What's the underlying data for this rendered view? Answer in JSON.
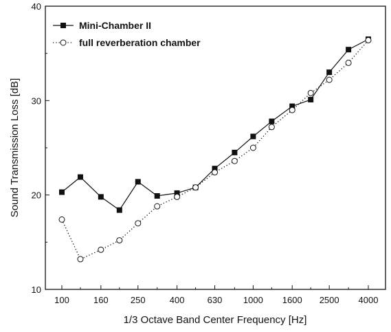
{
  "chart_data": {
    "type": "line",
    "title": "",
    "xlabel": "1/3 Octave Band Center Frequency [Hz]",
    "ylabel": "Sound Transmission Loss [dB]",
    "ylim": [
      10,
      40
    ],
    "yticks": [
      10,
      20,
      30,
      40
    ],
    "x_scale": "log",
    "x": [
      100,
      125,
      160,
      200,
      250,
      315,
      400,
      500,
      630,
      800,
      1000,
      1250,
      1600,
      2000,
      2500,
      3150,
      4000
    ],
    "xtick_labels": [
      "100",
      "160",
      "250",
      "400",
      "630",
      "1000",
      "1600",
      "2500",
      "4000"
    ],
    "legend_position": "top-left",
    "grid": false,
    "series": [
      {
        "name": "Mini-Chamber II",
        "marker": "filled-square",
        "line": "solid",
        "values": [
          20.3,
          21.9,
          19.8,
          18.4,
          21.4,
          19.9,
          20.2,
          20.8,
          22.8,
          24.5,
          26.2,
          27.8,
          29.4,
          30.1,
          33.0,
          35.4,
          36.5
        ]
      },
      {
        "name": "full reverberation chamber",
        "marker": "open-circle",
        "line": "dotted",
        "values": [
          17.4,
          13.2,
          14.2,
          15.2,
          17.0,
          18.8,
          19.8,
          20.8,
          22.4,
          23.6,
          25.0,
          27.2,
          29.0,
          30.8,
          32.2,
          34.0,
          36.4
        ]
      }
    ],
    "colors": {
      "line": "#111111",
      "background": "#ffffff"
    }
  }
}
